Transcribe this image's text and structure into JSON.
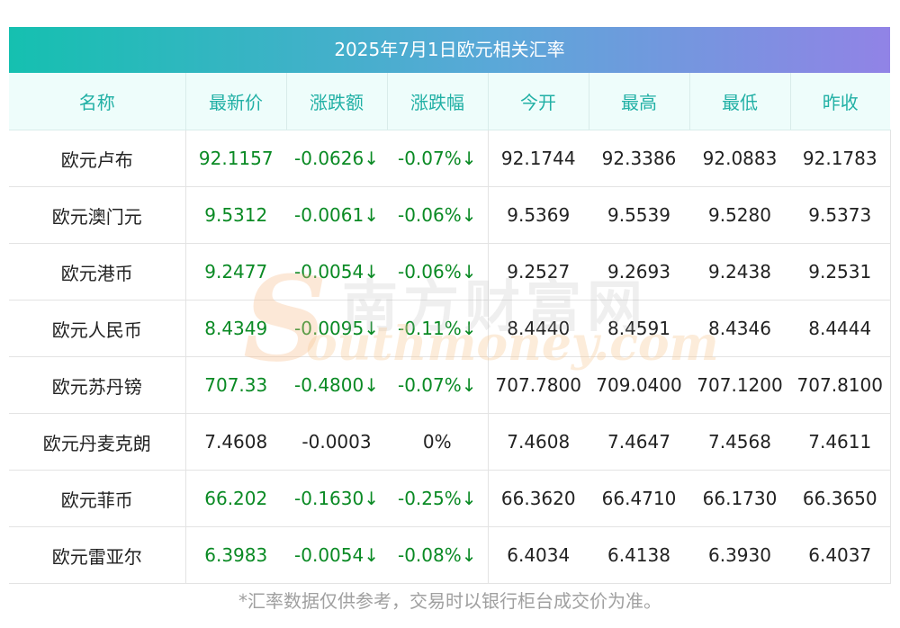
{
  "title": "2025年7月1日欧元相关汇率",
  "headers": [
    "名称",
    "最新价",
    "涨跌额",
    "涨跌幅",
    "今开",
    "最高",
    "最低",
    "昨收"
  ],
  "rows": [
    {
      "name": "欧元卢布",
      "latest": "92.1157",
      "change": "-0.0626↓",
      "pct": "-0.07%↓",
      "open": "92.1744",
      "high": "92.3386",
      "low": "92.0883",
      "prev": "92.1783",
      "trend": "down"
    },
    {
      "name": "欧元澳门元",
      "latest": "9.5312",
      "change": "-0.0061↓",
      "pct": "-0.06%↓",
      "open": "9.5369",
      "high": "9.5539",
      "low": "9.5280",
      "prev": "9.5373",
      "trend": "down"
    },
    {
      "name": "欧元港币",
      "latest": "9.2477",
      "change": "-0.0054↓",
      "pct": "-0.06%↓",
      "open": "9.2527",
      "high": "9.2693",
      "low": "9.2438",
      "prev": "9.2531",
      "trend": "down"
    },
    {
      "name": "欧元人民币",
      "latest": "8.4349",
      "change": "-0.0095↓",
      "pct": "-0.11%↓",
      "open": "8.4440",
      "high": "8.4591",
      "low": "8.4346",
      "prev": "8.4444",
      "trend": "down"
    },
    {
      "name": "欧元苏丹镑",
      "latest": "707.33",
      "change": "-0.4800↓",
      "pct": "-0.07%↓",
      "open": "707.7800",
      "high": "709.0400",
      "low": "707.1200",
      "prev": "707.8100",
      "trend": "down"
    },
    {
      "name": "欧元丹麦克朗",
      "latest": "7.4608",
      "change": "-0.0003",
      "pct": "0%",
      "open": "7.4608",
      "high": "7.4647",
      "low": "7.4568",
      "prev": "7.4611",
      "trend": "flat"
    },
    {
      "name": "欧元菲币",
      "latest": "66.202",
      "change": "-0.1630↓",
      "pct": "-0.25%↓",
      "open": "66.3620",
      "high": "66.4710",
      "low": "66.1730",
      "prev": "66.3650",
      "trend": "down"
    },
    {
      "name": "欧元雷亚尔",
      "latest": "6.3983",
      "change": "-0.0054↓",
      "pct": "-0.08%↓",
      "open": "6.4034",
      "high": "6.4138",
      "low": "6.3930",
      "prev": "6.4037",
      "trend": "down"
    }
  ],
  "watermark": {
    "cn": "南方财富网",
    "en": "outhmoney.com",
    "s": "S"
  },
  "footnote": "*汇率数据仅供参考，交易时以银行柜台成交价为准。",
  "colors": {
    "down": "#0a8a24",
    "header_text": "#21b0a5",
    "title_gradient_start": "#15c0b0",
    "title_gradient_end": "#9183e6"
  }
}
